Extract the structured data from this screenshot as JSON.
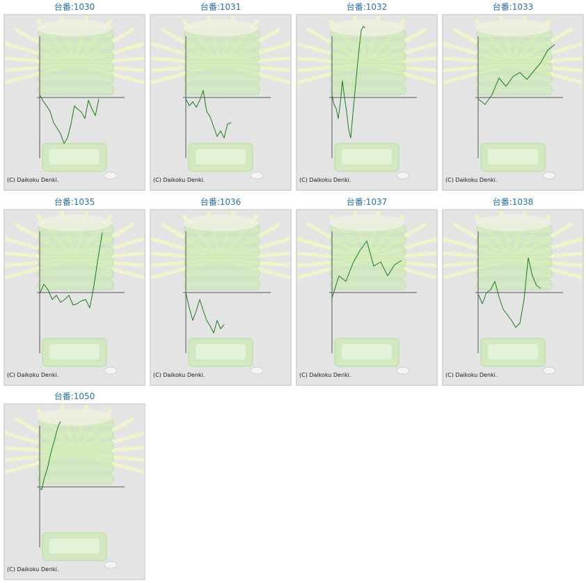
{
  "credit": "(C) Daikoku Denki.",
  "colors": {
    "label": "#2a6f9e",
    "line": "#1a7a1a",
    "axis": "#555555",
    "panel": "#e4e4e4",
    "decor": "#cdeab9"
  },
  "chart_data": [
    {
      "type": "line",
      "title": "台番:1030",
      "x": [
        0,
        5,
        10,
        15,
        20,
        25,
        30,
        35,
        40,
        45,
        50,
        55,
        60,
        65,
        70,
        75,
        80,
        85
      ],
      "y": [
        4,
        -5,
        -12,
        -20,
        -36,
        -44,
        -52,
        -66,
        -58,
        -38,
        -12,
        -17,
        -21,
        -30,
        -4,
        -16,
        -26,
        -2
      ]
    },
    {
      "type": "line",
      "title": "台番:1031",
      "x": [
        0,
        5,
        10,
        15,
        20,
        25,
        30,
        35,
        40,
        45,
        50,
        55,
        60,
        65
      ],
      "y": [
        -2,
        -12,
        -6,
        -14,
        -4,
        10,
        -20,
        -28,
        -42,
        -56,
        -48,
        -58,
        -38,
        -36
      ]
    },
    {
      "type": "line",
      "title": "台番:1032",
      "x": [
        0,
        3,
        6,
        9,
        12,
        15,
        18,
        21,
        24,
        27,
        30,
        33,
        36,
        39,
        42,
        45,
        48
      ],
      "y": [
        4,
        -10,
        -16,
        -30,
        -8,
        24,
        0,
        -20,
        -46,
        -58,
        -24,
        8,
        40,
        70,
        96,
        102,
        100
      ]
    },
    {
      "type": "line",
      "title": "台番:1033",
      "x": [
        0,
        10,
        20,
        30,
        40,
        50,
        60,
        70,
        80,
        90,
        100,
        110
      ],
      "y": [
        -2,
        -10,
        4,
        28,
        16,
        30,
        36,
        26,
        38,
        50,
        68,
        76
      ]
    },
    {
      "type": "line",
      "title": "台番:1035",
      "x": [
        0,
        6,
        12,
        18,
        24,
        30,
        36,
        42,
        48,
        54,
        60,
        66,
        72,
        78,
        84,
        90
      ],
      "y": [
        -2,
        12,
        4,
        -10,
        -4,
        -14,
        -10,
        -4,
        -18,
        -16,
        -12,
        -10,
        -22,
        10,
        50,
        86
      ]
    },
    {
      "type": "line",
      "title": "台番:1036",
      "x": [
        0,
        5,
        10,
        15,
        20,
        25,
        30,
        35,
        40,
        45,
        50,
        55
      ],
      "y": [
        0,
        -22,
        -40,
        -26,
        -10,
        -26,
        -40,
        -48,
        -58,
        -40,
        -52,
        -46
      ]
    },
    {
      "type": "line",
      "title": "台番:1037",
      "x": [
        0,
        10,
        20,
        30,
        40,
        50,
        60,
        70,
        80,
        90,
        100
      ],
      "y": [
        -8,
        24,
        16,
        42,
        60,
        74,
        38,
        44,
        24,
        40,
        46
      ]
    },
    {
      "type": "line",
      "title": "台番:1038",
      "x": [
        0,
        6,
        12,
        18,
        24,
        30,
        36,
        42,
        48,
        54,
        60,
        66,
        72,
        78,
        84,
        90
      ],
      "y": [
        -2,
        -16,
        0,
        4,
        16,
        -6,
        -24,
        -32,
        -40,
        -50,
        -44,
        -10,
        50,
        24,
        10,
        6
      ]
    },
    {
      "type": "line",
      "title": "台番:1050",
      "x": [
        0,
        3,
        6,
        9,
        12,
        15,
        18,
        21,
        24,
        27,
        30
      ],
      "y": [
        -2,
        -4,
        10,
        20,
        30,
        44,
        56,
        66,
        78,
        88,
        94
      ]
    }
  ]
}
